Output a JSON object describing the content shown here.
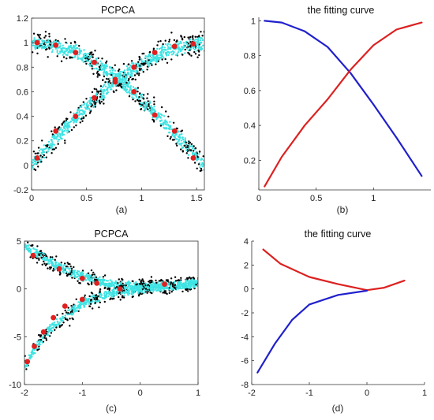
{
  "chart_data": [
    {
      "id": "a",
      "type": "scatter",
      "title": "PCPCA",
      "panel_label": "(a)",
      "xlim": [
        0,
        1.5708
      ],
      "ylim": [
        -0.2,
        1.2
      ],
      "xticks": [
        0,
        0.5,
        1,
        1.5
      ],
      "yticks": [
        -0.2,
        0,
        0.2,
        0.4,
        0.6,
        0.8,
        1,
        1.2
      ],
      "xtick_labels": [
        "0",
        "0.5",
        "1",
        "1.5"
      ],
      "ytick_labels": [
        "-0.2",
        "0",
        "0.2",
        "0.4",
        "0.6",
        "0.8",
        "1",
        "1.2"
      ],
      "colors": {
        "cloud": "#3fe3e3",
        "dark": "#000000",
        "markers": "#e02020"
      },
      "bands": [
        {
          "x": [
            0.0,
            0.4,
            0.8,
            1.2,
            1.5708
          ],
          "y": [
            1.0,
            0.93,
            0.7,
            0.36,
            0.0
          ],
          "spread": 0.065,
          "count": 900
        },
        {
          "x": [
            0.0,
            0.4,
            0.8,
            1.2,
            1.5708
          ],
          "y": [
            0.0,
            0.39,
            0.72,
            0.93,
            1.0
          ],
          "spread": 0.065,
          "count": 900
        }
      ],
      "markers": [
        {
          "x": [
            0.05,
            0.22,
            0.4,
            0.57,
            0.76,
            0.93,
            1.12,
            1.3,
            1.47
          ],
          "y": [
            1.0,
            0.98,
            0.92,
            0.84,
            0.68,
            0.6,
            0.41,
            0.28,
            0.06
          ]
        },
        {
          "x": [
            0.05,
            0.22,
            0.4,
            0.57,
            0.76,
            0.93,
            1.12,
            1.3,
            1.47
          ],
          "y": [
            0.06,
            0.28,
            0.4,
            0.55,
            0.7,
            0.8,
            0.92,
            0.97,
            0.99
          ]
        }
      ]
    },
    {
      "id": "b",
      "type": "line",
      "title": "the fitting curve",
      "panel_label": "(b)",
      "xlim": [
        0,
        1.5
      ],
      "ylim": [
        0.03,
        1.02
      ],
      "xticks": [
        0,
        0.5,
        1
      ],
      "yticks": [
        0.2,
        0.4,
        0.6,
        0.8,
        1
      ],
      "xtick_labels": [
        "0",
        "0.5",
        "1"
      ],
      "ytick_labels": [
        "0.2",
        "0.4",
        "0.6",
        "0.8",
        "1"
      ],
      "series": [
        {
          "color": "#2020cc",
          "x": [
            0.05,
            0.2,
            0.4,
            0.6,
            0.8,
            1.0,
            1.2,
            1.42
          ],
          "y": [
            1.0,
            0.99,
            0.94,
            0.85,
            0.7,
            0.52,
            0.33,
            0.11
          ]
        },
        {
          "color": "#dd2020",
          "x": [
            0.05,
            0.2,
            0.4,
            0.6,
            0.8,
            1.0,
            1.2,
            1.42
          ],
          "y": [
            0.05,
            0.22,
            0.4,
            0.55,
            0.72,
            0.86,
            0.95,
            0.99
          ]
        }
      ]
    },
    {
      "id": "c",
      "type": "scatter",
      "title": "PCPCA",
      "panel_label": "(c)",
      "xlim": [
        -2,
        1
      ],
      "ylim": [
        -10,
        5
      ],
      "xticks": [
        -2,
        -1,
        0,
        1
      ],
      "yticks": [
        -10,
        -5,
        0,
        5
      ],
      "xtick_labels": [
        "-2",
        "-1",
        "0",
        "1"
      ],
      "ytick_labels": [
        "-10",
        "-5",
        "0",
        "5"
      ],
      "colors": {
        "cloud": "#3fe3e3",
        "dark": "#000000",
        "markers": "#e02020"
      },
      "bands": [
        {
          "x": [
            -2.0,
            -1.5,
            -1.0,
            -0.5,
            0.0,
            0.5,
            1.0
          ],
          "y": [
            4.5,
            2.6,
            1.3,
            0.5,
            0.2,
            0.3,
            0.6
          ],
          "spread": 0.55,
          "count": 800
        },
        {
          "x": [
            -2.0,
            -1.75,
            -1.5,
            -1.0,
            -0.5,
            0.0,
            0.5,
            1.0
          ],
          "y": [
            -8.2,
            -5.6,
            -3.8,
            -1.5,
            -0.5,
            0.0,
            0.3,
            0.6
          ],
          "spread": 0.55,
          "count": 800
        }
      ],
      "markers": [
        {
          "x": [
            -1.85,
            -1.4,
            -1.0,
            -0.75,
            -0.35,
            0.42
          ],
          "y": [
            3.5,
            2.1,
            1.1,
            0.6,
            0.0,
            0.5
          ]
        },
        {
          "x": [
            -1.95,
            -1.83,
            -1.67,
            -1.5,
            -1.3,
            -1.0
          ],
          "y": [
            -7.6,
            -6.0,
            -4.5,
            -3.0,
            -1.8,
            -1.1
          ]
        }
      ]
    },
    {
      "id": "d",
      "type": "line",
      "title": "the fitting curve",
      "panel_label": "(d)",
      "xlim": [
        -2,
        1
      ],
      "ylim": [
        -8,
        4
      ],
      "xticks": [
        -2,
        -1,
        0,
        1
      ],
      "yticks": [
        -8,
        -6,
        -4,
        -2,
        0,
        2,
        4
      ],
      "xtick_labels": [
        "-2",
        "-1",
        "0",
        "1"
      ],
      "ytick_labels": [
        "-8",
        "-6",
        "-4",
        "-2",
        "0",
        "2",
        "4"
      ],
      "series": [
        {
          "color": "#dd2020",
          "x": [
            -1.8,
            -1.5,
            -1.0,
            -0.5,
            0.0,
            0.3,
            0.65
          ],
          "y": [
            3.3,
            2.1,
            1.0,
            0.4,
            -0.1,
            0.1,
            0.7
          ]
        },
        {
          "color": "#2020cc",
          "x": [
            -1.9,
            -1.6,
            -1.3,
            -1.0,
            -0.5,
            0.0
          ],
          "y": [
            -7.0,
            -4.6,
            -2.6,
            -1.3,
            -0.5,
            -0.15
          ]
        }
      ]
    }
  ]
}
